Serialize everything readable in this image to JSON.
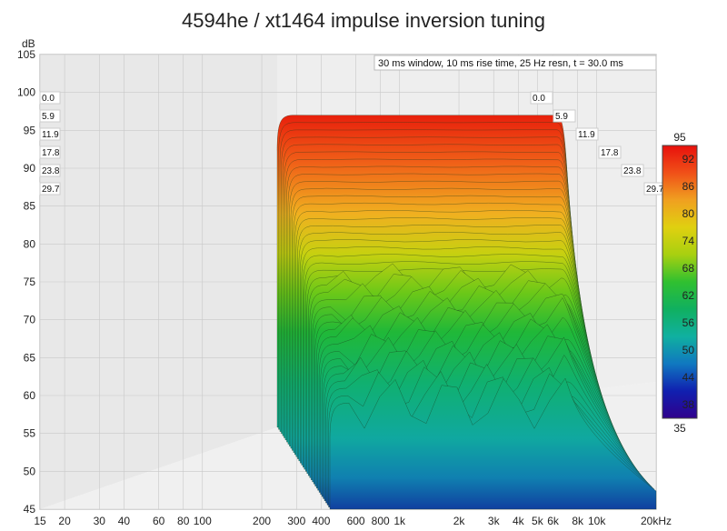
{
  "chart_data": {
    "type": "waterfall",
    "title": "4594he / xt1464 impulse inversion tuning",
    "info": "30 ms window, 10 ms rise time,  25 Hz resn, t = 30.0 ms",
    "ylabel": "dB",
    "xlabel_unit": "kHz",
    "ylim": [
      45,
      105
    ],
    "xlim": [
      15,
      20000
    ],
    "x_scale": "log",
    "y_ticks": [
      105,
      100,
      95,
      90,
      85,
      80,
      75,
      70,
      65,
      60,
      55,
      50,
      45
    ],
    "x_ticks": [
      {
        "v": 15,
        "t": "15"
      },
      {
        "v": 20,
        "t": "20"
      },
      {
        "v": 30,
        "t": "30"
      },
      {
        "v": 40,
        "t": "40"
      },
      {
        "v": 60,
        "t": "60"
      },
      {
        "v": 80,
        "t": "80"
      },
      {
        "v": 100,
        "t": "100"
      },
      {
        "v": 200,
        "t": "200"
      },
      {
        "v": 300,
        "t": "300"
      },
      {
        "v": 400,
        "t": "400"
      },
      {
        "v": 600,
        "t": "600"
      },
      {
        "v": 800,
        "t": "800"
      },
      {
        "v": 1000,
        "t": "1k"
      },
      {
        "v": 2000,
        "t": "2k"
      },
      {
        "v": 3000,
        "t": "3k"
      },
      {
        "v": 4000,
        "t": "4k"
      },
      {
        "v": 5000,
        "t": "5k"
      },
      {
        "v": 6000,
        "t": "6k"
      },
      {
        "v": 8000,
        "t": "8k"
      },
      {
        "v": 10000,
        "t": "10k"
      },
      {
        "v": 20000,
        "t": "20kHz"
      }
    ],
    "time_labels": [
      "0.0",
      "5.9",
      "11.9",
      "17.8",
      "23.8",
      "29.7"
    ],
    "slices_ms": [
      0.0,
      5.9,
      11.9,
      17.8,
      23.8,
      29.7
    ],
    "passband": {
      "low_hz": 300,
      "high_hz": 6500,
      "level_db": 97,
      "high_rolloff_db": 83
    },
    "colorbar": {
      "min": 35,
      "max": 95,
      "ticks": [
        92,
        86,
        80,
        74,
        68,
        62,
        56,
        50,
        44,
        38
      ]
    }
  }
}
